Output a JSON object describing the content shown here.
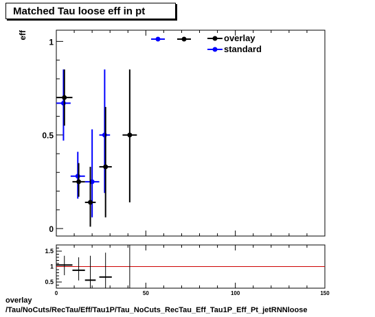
{
  "title": "Matched Tau loose eff in pt",
  "footer": {
    "line1": "overlay",
    "line2": "/Tau/NoCuts/RecTau/Eff/Tau1P/Tau_NoCuts_RecTau_Eff_Tau1P_Eff_Pt_jetRNNloose"
  },
  "chart_data": [
    {
      "type": "scatter",
      "title": "Matched Tau loose eff in pt",
      "ylabel": "eff",
      "xlim": [
        0,
        150
      ],
      "ylim": [
        -0.04,
        1.06
      ],
      "yticks": [
        0,
        0.5,
        1
      ],
      "ytick_labels": [
        "0",
        "0.5",
        "1"
      ],
      "legend_position": "top-right",
      "series": [
        {
          "name": "overlay",
          "color": "#000000",
          "points": [
            {
              "x": 4.5,
              "xerr": 4.5,
              "y": 0.7,
              "ylo": 0.55,
              "yhi": 0.85
            },
            {
              "x": 12.5,
              "xerr": 3.5,
              "y": 0.25,
              "ylo": 0.17,
              "yhi": 0.35
            },
            {
              "x": 19.0,
              "xerr": 3.0,
              "y": 0.14,
              "ylo": 0.01,
              "yhi": 0.33
            },
            {
              "x": 27.5,
              "xerr": 3.5,
              "y": 0.33,
              "ylo": 0.06,
              "yhi": 0.65
            },
            {
              "x": 41.0,
              "xerr": 4.0,
              "y": 0.5,
              "ylo": 0.14,
              "yhi": 0.85
            }
          ]
        },
        {
          "name": "standard",
          "color": "#0000ff",
          "points": [
            {
              "x": 4.0,
              "xerr": 4.0,
              "y": 0.67,
              "ylo": 0.47,
              "yhi": 0.85
            },
            {
              "x": 12.0,
              "xerr": 4.0,
              "y": 0.28,
              "ylo": 0.16,
              "yhi": 0.41
            },
            {
              "x": 20.0,
              "xerr": 4.0,
              "y": 0.25,
              "ylo": 0.06,
              "yhi": 0.53
            },
            {
              "x": 27.0,
              "xerr": 3.0,
              "y": 0.5,
              "ylo": 0.19,
              "yhi": 0.85
            }
          ]
        }
      ]
    },
    {
      "type": "scatter",
      "title": "",
      "xlim": [
        0,
        150
      ],
      "ylim": [
        0.3,
        1.7
      ],
      "xticks": [
        0,
        50,
        100,
        150
      ],
      "xtick_labels": [
        "0",
        "50",
        "100",
        "150"
      ],
      "yticks": [
        0.5,
        1,
        1.5
      ],
      "ytick_labels": [
        "0.5",
        "1",
        "1.5"
      ],
      "reference_line": {
        "y": 1,
        "color": "#cc0000"
      },
      "series": [
        {
          "name": "",
          "color": "#000000",
          "points": [
            {
              "x": 4.5,
              "xerr": 4.5,
              "y": 1.05,
              "ylo": 0.72,
              "yhi": 1.35
            },
            {
              "x": 12.5,
              "xerr": 3.5,
              "y": 0.88,
              "ylo": 0.55,
              "yhi": 1.3
            },
            {
              "x": 19.0,
              "xerr": 3.0,
              "y": 0.56,
              "ylo": 0.3,
              "yhi": 1.35
            },
            {
              "x": 27.5,
              "xerr": 3.5,
              "y": 0.66,
              "ylo": 0.3,
              "yhi": 1.45
            },
            {
              "x": 41.0,
              "xerr": 0.0,
              "y": 1.0,
              "ylo": 0.3,
              "yhi": 1.7
            }
          ]
        }
      ]
    }
  ]
}
